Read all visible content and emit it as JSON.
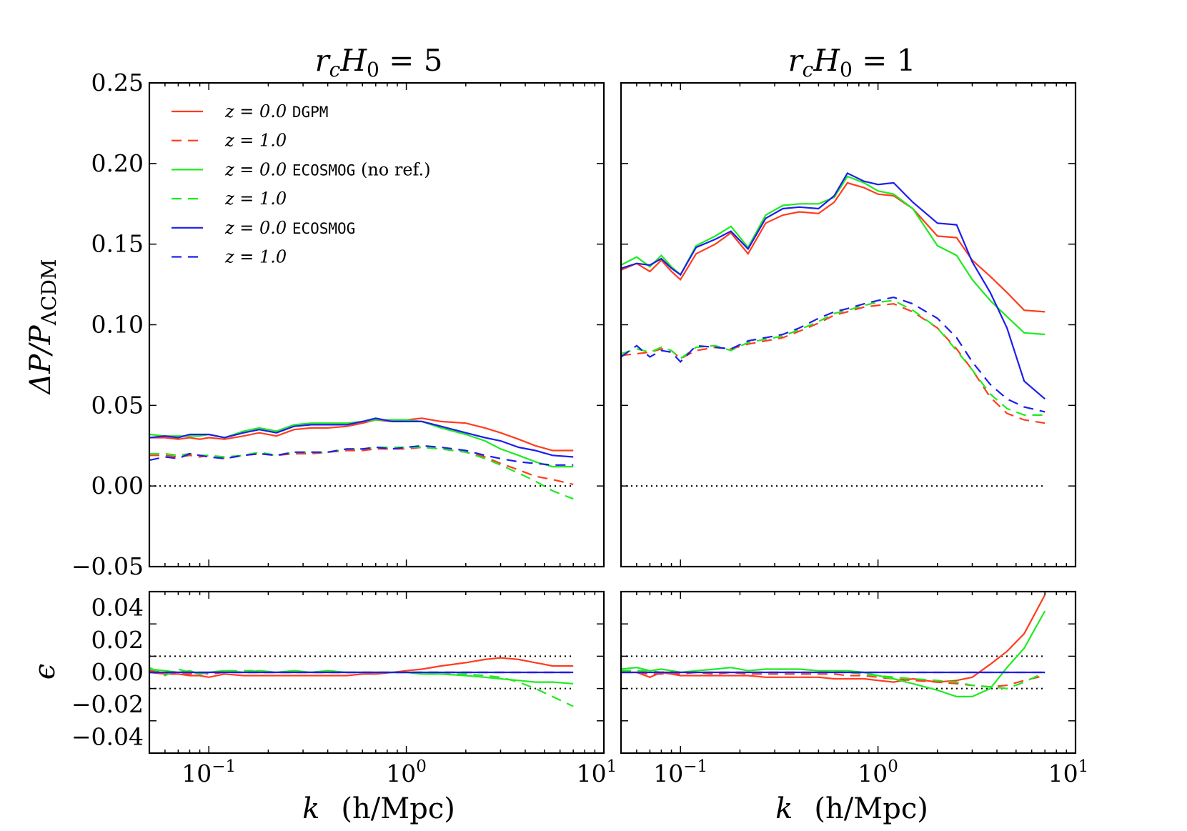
{
  "chart_data": [
    {
      "type": "line",
      "panel": "top-left",
      "title": "r_cH_0 = 5",
      "ylabel": "ΔP/P_ΛCDM",
      "xscale": "log",
      "xlim": [
        0.05,
        10
      ],
      "ylim": [
        -0.05,
        0.25
      ],
      "yticks": [
        "0.25",
        "0.20",
        "0.15",
        "0.10",
        "0.05",
        "0.00",
        "−0.05"
      ],
      "reference_lines": [
        0.0
      ],
      "legend": {
        "placement": "top-left"
      },
      "x": [
        0.05,
        0.06,
        0.07,
        0.08,
        0.09,
        0.1,
        0.12,
        0.15,
        0.18,
        0.22,
        0.27,
        0.33,
        0.4,
        0.5,
        0.6,
        0.7,
        0.85,
        1.0,
        1.2,
        1.5,
        2.0,
        2.5,
        3.0,
        3.7,
        4.5,
        5.5,
        7.0
      ],
      "series": [
        {
          "name": "z = 0.0 DGPM",
          "color": "#ff3c1e",
          "dash": "solid",
          "values": [
            0.03,
            0.03,
            0.029,
            0.03,
            0.029,
            0.03,
            0.029,
            0.031,
            0.033,
            0.031,
            0.035,
            0.036,
            0.036,
            0.037,
            0.039,
            0.041,
            0.04,
            0.041,
            0.042,
            0.04,
            0.039,
            0.036,
            0.033,
            0.029,
            0.025,
            0.022,
            0.022
          ]
        },
        {
          "name": "z = 1.0",
          "color": "#ff3c1e",
          "dash": "dashed",
          "values": [
            0.019,
            0.019,
            0.018,
            0.019,
            0.018,
            0.019,
            0.017,
            0.019,
            0.02,
            0.019,
            0.02,
            0.02,
            0.021,
            0.022,
            0.022,
            0.023,
            0.023,
            0.023,
            0.024,
            0.023,
            0.021,
            0.018,
            0.014,
            0.01,
            0.006,
            0.004,
            0.001
          ]
        },
        {
          "name": "z = 0.0 ECOSMOG (no ref.)",
          "color": "#1eeb1e",
          "dash": "solid",
          "values": [
            0.032,
            0.031,
            0.031,
            0.031,
            0.031,
            0.032,
            0.03,
            0.034,
            0.036,
            0.034,
            0.038,
            0.039,
            0.039,
            0.039,
            0.04,
            0.041,
            0.041,
            0.041,
            0.04,
            0.036,
            0.032,
            0.028,
            0.023,
            0.019,
            0.015,
            0.012,
            0.012
          ]
        },
        {
          "name": "z = 1.0",
          "color": "#1eeb1e",
          "dash": "dashed",
          "values": [
            0.02,
            0.02,
            0.019,
            0.02,
            0.019,
            0.019,
            0.018,
            0.019,
            0.021,
            0.019,
            0.021,
            0.021,
            0.021,
            0.023,
            0.023,
            0.024,
            0.024,
            0.024,
            0.024,
            0.023,
            0.021,
            0.017,
            0.013,
            0.008,
            0.003,
            -0.003,
            -0.008
          ]
        },
        {
          "name": "z = 0.0 ECOSMOG",
          "color": "#1e1eeb",
          "dash": "solid",
          "values": [
            0.03,
            0.031,
            0.03,
            0.032,
            0.032,
            0.032,
            0.03,
            0.033,
            0.035,
            0.033,
            0.037,
            0.038,
            0.038,
            0.038,
            0.04,
            0.042,
            0.04,
            0.04,
            0.04,
            0.037,
            0.033,
            0.03,
            0.028,
            0.024,
            0.022,
            0.019,
            0.018
          ]
        },
        {
          "name": "z = 1.0",
          "color": "#1e1eeb",
          "dash": "dashed",
          "values": [
            0.016,
            0.018,
            0.017,
            0.02,
            0.019,
            0.018,
            0.017,
            0.019,
            0.02,
            0.019,
            0.021,
            0.021,
            0.021,
            0.023,
            0.023,
            0.024,
            0.023,
            0.024,
            0.025,
            0.024,
            0.022,
            0.019,
            0.017,
            0.015,
            0.014,
            0.013,
            0.013
          ]
        }
      ]
    },
    {
      "type": "line",
      "panel": "top-right",
      "title": "r_cH_0 = 1",
      "xscale": "log",
      "xlim": [
        0.05,
        10
      ],
      "ylim": [
        -0.05,
        0.25
      ],
      "reference_lines": [
        0.0
      ],
      "x": [
        0.05,
        0.06,
        0.07,
        0.08,
        0.09,
        0.1,
        0.12,
        0.15,
        0.18,
        0.22,
        0.27,
        0.33,
        0.4,
        0.5,
        0.6,
        0.7,
        0.85,
        1.0,
        1.2,
        1.5,
        2.0,
        2.5,
        3.0,
        3.7,
        4.5,
        5.5,
        7.0
      ],
      "series": [
        {
          "name": "z = 0.0 DGPM",
          "color": "#ff3c1e",
          "values": [
            0.134,
            0.138,
            0.133,
            0.14,
            0.133,
            0.128,
            0.144,
            0.15,
            0.157,
            0.144,
            0.163,
            0.168,
            0.17,
            0.169,
            0.176,
            0.188,
            0.185,
            0.181,
            0.18,
            0.172,
            0.155,
            0.154,
            0.14,
            0.13,
            0.12,
            0.109,
            0.108
          ]
        },
        {
          "name": "z = 1.0",
          "color": "#ff3c1e",
          "values": [
            0.081,
            0.082,
            0.083,
            0.085,
            0.084,
            0.079,
            0.084,
            0.086,
            0.085,
            0.088,
            0.09,
            0.092,
            0.096,
            0.101,
            0.106,
            0.108,
            0.111,
            0.112,
            0.113,
            0.108,
            0.098,
            0.085,
            0.072,
            0.055,
            0.045,
            0.041,
            0.039
          ]
        },
        {
          "name": "z = 0.0 ECOSMOG (no ref.)",
          "color": "#1eeb1e",
          "values": [
            0.137,
            0.142,
            0.136,
            0.143,
            0.136,
            0.131,
            0.149,
            0.155,
            0.161,
            0.148,
            0.168,
            0.174,
            0.175,
            0.175,
            0.179,
            0.192,
            0.188,
            0.183,
            0.181,
            0.172,
            0.149,
            0.143,
            0.128,
            0.115,
            0.105,
            0.095,
            0.094
          ]
        },
        {
          "name": "z = 1.0",
          "color": "#1eeb1e",
          "values": [
            0.082,
            0.085,
            0.083,
            0.086,
            0.084,
            0.079,
            0.086,
            0.087,
            0.084,
            0.089,
            0.091,
            0.093,
            0.097,
            0.102,
            0.107,
            0.109,
            0.112,
            0.114,
            0.115,
            0.109,
            0.098,
            0.084,
            0.072,
            0.057,
            0.048,
            0.044,
            0.044
          ]
        },
        {
          "name": "z = 0.0 ECOSMOG",
          "color": "#1e1eeb",
          "values": [
            0.135,
            0.138,
            0.137,
            0.141,
            0.135,
            0.131,
            0.148,
            0.153,
            0.158,
            0.147,
            0.166,
            0.172,
            0.173,
            0.172,
            0.18,
            0.194,
            0.189,
            0.187,
            0.188,
            0.176,
            0.163,
            0.162,
            0.139,
            0.12,
            0.098,
            0.065,
            0.054
          ]
        },
        {
          "name": "z = 1.0",
          "color": "#1e1eeb",
          "values": [
            0.08,
            0.087,
            0.08,
            0.084,
            0.083,
            0.077,
            0.087,
            0.086,
            0.085,
            0.09,
            0.092,
            0.094,
            0.098,
            0.104,
            0.108,
            0.11,
            0.113,
            0.115,
            0.117,
            0.113,
            0.104,
            0.092,
            0.077,
            0.063,
            0.054,
            0.049,
            0.046
          ]
        }
      ]
    },
    {
      "type": "line",
      "panel": "bottom-left",
      "ylabel": "ϵ",
      "xlabel": "k (h/Mpc)",
      "xscale": "log",
      "xlim": [
        0.05,
        10
      ],
      "ylim": [
        -0.05,
        0.05
      ],
      "yticks": [
        "0.04",
        "0.02",
        "0.00",
        "−0.02",
        "−0.04"
      ],
      "xticks": [
        "10−1",
        "100",
        "101"
      ],
      "reference_lines": [
        0.01,
        -0.01
      ],
      "x": [
        0.05,
        0.06,
        0.07,
        0.08,
        0.09,
        0.1,
        0.12,
        0.15,
        0.18,
        0.22,
        0.27,
        0.33,
        0.4,
        0.5,
        0.6,
        0.7,
        0.85,
        1.0,
        1.2,
        1.5,
        2.0,
        2.5,
        3.0,
        3.7,
        4.5,
        5.5,
        7.0
      ],
      "series": [
        {
          "name": "z = 0.0 DGPM",
          "color": "#ff3c1e",
          "dash": "solid",
          "values": [
            0.0,
            -0.001,
            -0.001,
            -0.002,
            -0.002,
            -0.003,
            -0.001,
            -0.002,
            -0.002,
            -0.002,
            -0.002,
            -0.002,
            -0.002,
            -0.002,
            -0.001,
            -0.001,
            0.0,
            0.001,
            0.002,
            0.004,
            0.006,
            0.008,
            0.009,
            0.008,
            0.006,
            0.004,
            0.004
          ]
        },
        {
          "name": "z = 1.0",
          "color": "#ff3c1e",
          "dash": "dashed",
          "values": [
            0.001,
            0.0,
            -0.001,
            -0.001,
            0.0,
            -0.001,
            0.0,
            0.0,
            0.0,
            0.0,
            0.0,
            0.0,
            0.0,
            0.0,
            0.0,
            0.0,
            0.0,
            0.0,
            0.0,
            0.0,
            0.0,
            0.0,
            0.0,
            0.0,
            0.0,
            0.0,
            0.0
          ]
        },
        {
          "name": "z = 0.0 ECOSMOG (no ref.)",
          "color": "#1eeb1e",
          "dash": "solid",
          "values": [
            0.002,
            0.001,
            0.0,
            0.001,
            -0.001,
            0.0,
            0.001,
            0.0,
            0.001,
            0.0,
            0.001,
            0.0,
            0.001,
            0.0,
            0.0,
            0.0,
            0.0,
            0.0,
            -0.001,
            -0.001,
            -0.002,
            -0.003,
            -0.004,
            -0.005,
            -0.006,
            -0.006,
            -0.007
          ]
        },
        {
          "name": "z = 1.0",
          "color": "#1eeb1e",
          "dash": "dashed",
          "values": [
            0.003,
            -0.002,
            0.002,
            0.0,
            -0.001,
            0.0,
            0.001,
            0.001,
            0.001,
            0.0,
            0.001,
            0.0,
            0.001,
            0.0,
            0.0,
            0.0,
            0.0,
            0.0,
            -0.001,
            -0.001,
            -0.001,
            -0.002,
            -0.003,
            -0.006,
            -0.01,
            -0.015,
            -0.021
          ]
        },
        {
          "name": "z = 0.0 ECOSMOG",
          "color": "#1e1eeb",
          "dash": "solid",
          "values": [
            0.0,
            0.0,
            0.0,
            0.0,
            0.0,
            0.0,
            0.0,
            0.0,
            0.0,
            0.0,
            0.0,
            0.0,
            0.0,
            0.0,
            0.0,
            0.0,
            0.0,
            0.0,
            0.0,
            0.0,
            0.0,
            0.0,
            0.0,
            0.0,
            0.0,
            0.0,
            0.0
          ]
        },
        {
          "name": "z = 1.0",
          "color": "#1e1eeb",
          "dash": "dashed",
          "values": [
            0.0,
            0.0,
            0.0,
            0.0,
            0.0,
            0.0,
            0.0,
            0.0,
            0.0,
            0.0,
            0.0,
            0.0,
            0.0,
            0.0,
            0.0,
            0.0,
            0.0,
            0.0,
            0.0,
            0.0,
            0.0,
            0.0,
            0.0,
            0.0,
            0.0,
            0.0,
            0.0
          ]
        }
      ]
    },
    {
      "type": "line",
      "panel": "bottom-right",
      "xlabel": "k (h/Mpc)",
      "xscale": "log",
      "xlim": [
        0.05,
        10
      ],
      "ylim": [
        -0.05,
        0.05
      ],
      "xticks": [
        "10−1",
        "100",
        "101"
      ],
      "reference_lines": [
        0.01,
        -0.01
      ],
      "x": [
        0.05,
        0.06,
        0.07,
        0.08,
        0.09,
        0.1,
        0.12,
        0.15,
        0.18,
        0.22,
        0.27,
        0.33,
        0.4,
        0.5,
        0.6,
        0.7,
        0.85,
        1.0,
        1.2,
        1.5,
        2.0,
        2.5,
        3.0,
        3.7,
        4.5,
        5.5,
        7.0
      ],
      "series": [
        {
          "name": "z = 0.0 DGPM",
          "color": "#ff3c1e",
          "dash": "solid",
          "values": [
            0.0,
            0.0,
            -0.003,
            0.0,
            -0.001,
            -0.002,
            -0.002,
            -0.002,
            -0.002,
            -0.002,
            -0.003,
            -0.003,
            -0.003,
            -0.003,
            -0.004,
            -0.004,
            -0.004,
            -0.005,
            -0.006,
            -0.004,
            -0.006,
            -0.005,
            -0.003,
            0.005,
            0.013,
            0.024,
            0.048
          ]
        },
        {
          "name": "z = 1.0",
          "color": "#ff3c1e",
          "dash": "dashed",
          "values": [
            0.001,
            0.0,
            -0.001,
            -0.001,
            0.0,
            -0.001,
            0.0,
            -0.001,
            0.0,
            -0.001,
            -0.001,
            -0.001,
            -0.001,
            -0.001,
            -0.001,
            -0.002,
            -0.002,
            -0.003,
            -0.004,
            -0.005,
            -0.006,
            -0.007,
            -0.008,
            -0.009,
            -0.008,
            -0.005,
            -0.002
          ]
        },
        {
          "name": "z = 0.0 ECOSMOG (no ref.)",
          "color": "#1eeb1e",
          "dash": "solid",
          "values": [
            0.002,
            0.003,
            0.001,
            0.002,
            0.001,
            0.0,
            0.001,
            0.002,
            0.003,
            0.001,
            0.002,
            0.002,
            0.002,
            0.001,
            0.001,
            0.001,
            0.0,
            -0.002,
            -0.004,
            -0.007,
            -0.011,
            -0.015,
            -0.015,
            -0.01,
            0.003,
            0.015,
            0.038
          ]
        },
        {
          "name": "z = 1.0",
          "color": "#1eeb1e",
          "dash": "dashed",
          "values": [
            0.001,
            0.001,
            0.001,
            0.0,
            0.001,
            0.0,
            0.0,
            0.0,
            0.0,
            0.0,
            0.0,
            0.0,
            0.0,
            0.0,
            0.0,
            0.0,
            -0.001,
            -0.002,
            -0.003,
            -0.004,
            -0.005,
            -0.006,
            -0.008,
            -0.009,
            -0.01,
            -0.006,
            0.0
          ]
        },
        {
          "name": "z = 0.0 ECOSMOG",
          "color": "#1e1eeb",
          "dash": "solid",
          "values": [
            0.0,
            0.0,
            0.0,
            0.0,
            0.0,
            0.0,
            0.0,
            0.0,
            0.0,
            0.0,
            0.0,
            0.0,
            0.0,
            0.0,
            0.0,
            0.0,
            0.0,
            0.0,
            0.0,
            0.0,
            0.0,
            0.0,
            0.0,
            0.0,
            0.0,
            0.0,
            0.0
          ]
        },
        {
          "name": "z = 1.0",
          "color": "#1e1eeb",
          "dash": "dashed",
          "values": [
            0.0,
            0.0,
            0.0,
            0.0,
            0.0,
            0.0,
            0.0,
            0.0,
            0.0,
            0.0,
            0.0,
            0.0,
            0.0,
            0.0,
            0.0,
            0.0,
            0.0,
            0.0,
            0.0,
            0.0,
            0.0,
            0.0,
            0.0,
            0.0,
            0.0,
            0.0,
            0.0
          ]
        }
      ]
    }
  ],
  "labels": {
    "title_left": {
      "r": "r",
      "c": "c",
      "H": "H",
      "zero": "0",
      "rest": " = 5"
    },
    "title_right": {
      "r": "r",
      "c": "c",
      "H": "H",
      "zero": "0",
      "rest": " = 1"
    },
    "ylabel_top": {
      "delta": "ΔP/P",
      "sub": "ΛCDM"
    },
    "ylabel_bottom": "ϵ",
    "xlabel": {
      "k": "k",
      "units": "(h/Mpc)"
    },
    "xtick_base": "10",
    "xtick_exps": [
      "−1",
      "0",
      "1"
    ]
  },
  "legend": [
    {
      "math": "z = 0.0 ",
      "code": "DGPM",
      "tail": "",
      "color": "#ff3c1e",
      "dash": "solid"
    },
    {
      "math": "z = 1.0",
      "code": "",
      "tail": "",
      "color": "#ff3c1e",
      "dash": "dashed"
    },
    {
      "math": "z = 0.0 ",
      "code": "ECOSMOG",
      "tail": " (no ref.)",
      "color": "#1eeb1e",
      "dash": "solid"
    },
    {
      "math": "z = 1.0",
      "code": "",
      "tail": "",
      "color": "#1eeb1e",
      "dash": "dashed"
    },
    {
      "math": "z = 0.0 ",
      "code": "ECOSMOG",
      "tail": "",
      "color": "#1e1eeb",
      "dash": "solid"
    },
    {
      "math": "z = 1.0",
      "code": "",
      "tail": "",
      "color": "#1e1eeb",
      "dash": "dashed"
    }
  ]
}
